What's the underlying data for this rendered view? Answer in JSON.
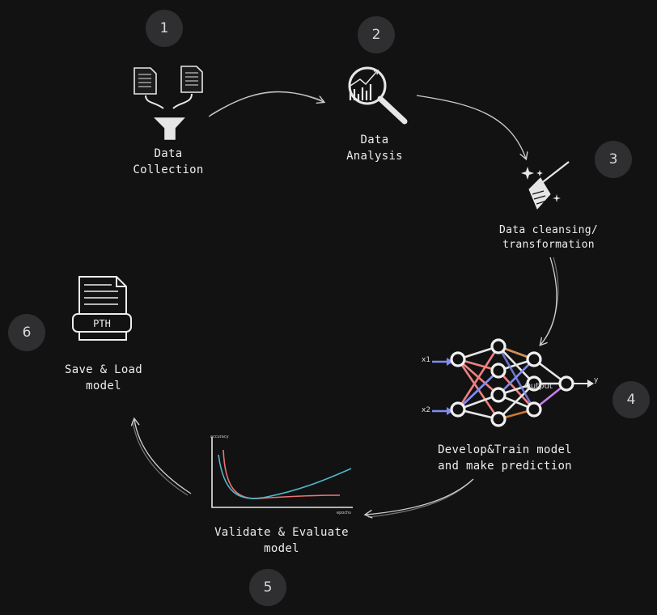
{
  "steps": [
    {
      "number": "1",
      "line1": "Data",
      "line2": "Collection"
    },
    {
      "number": "2",
      "line1": "Data",
      "line2": "Analysis"
    },
    {
      "number": "3",
      "line1": "Data cleansing/",
      "line2": "transformation"
    },
    {
      "number": "4",
      "line1": "Develop&Train model",
      "line2": "and make prediction"
    },
    {
      "number": "5",
      "line1": "Validate & Evaluate",
      "line2": "model"
    },
    {
      "number": "6",
      "line1": "Save & Load",
      "line2": "model"
    }
  ],
  "pth_label": "PTH",
  "network": {
    "input1": "x1",
    "input2": "x2",
    "output_label": "Output",
    "output_var": "y"
  },
  "curve_chart": {
    "ylabel": "accuracy",
    "xlabel": "epochs"
  },
  "icons": [
    "document-icon",
    "funnel-icon",
    "magnifier-chart-icon",
    "broom-icon",
    "neural-network-icon",
    "loss-curve-icon",
    "pth-file-icon"
  ]
}
